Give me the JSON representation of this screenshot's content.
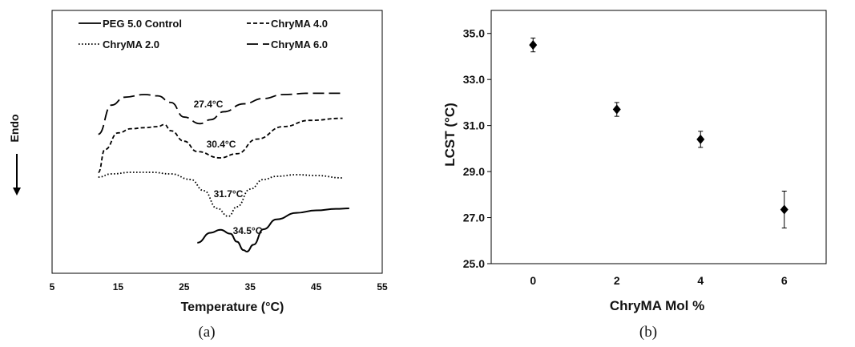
{
  "chart_data": [
    {
      "type": "line",
      "panel_label": "(a)",
      "xlabel": "Temperature (°C)",
      "ylabel": "Endo",
      "xlim": [
        5,
        55
      ],
      "x_ticks": [
        "5",
        "15",
        "25",
        "35",
        "45",
        "55"
      ],
      "y_ticks_shown": false,
      "legend": "top, two columns",
      "series": [
        {
          "name": "PEG 5.0 Control",
          "style": "solid",
          "x": [
            27,
            29,
            30.5,
            32,
            33,
            34,
            34.5,
            35.5,
            37,
            39,
            42,
            45,
            48,
            50
          ],
          "y": [
            0.82,
            0.62,
            0.56,
            0.64,
            0.8,
            0.97,
            1.0,
            0.86,
            0.55,
            0.35,
            0.22,
            0.17,
            0.14,
            0.13
          ]
        },
        {
          "name": "ChryMA 2.0",
          "style": "dotted",
          "x": [
            12,
            14,
            17,
            20,
            23,
            26,
            28,
            30,
            31.7,
            33,
            35,
            37,
            39,
            42,
            45,
            49
          ],
          "y": [
            0.31,
            0.27,
            0.25,
            0.25,
            0.27,
            0.34,
            0.48,
            0.7,
            0.8,
            0.68,
            0.46,
            0.34,
            0.3,
            0.28,
            0.29,
            0.32
          ]
        },
        {
          "name": "ChryMA 4.0",
          "style": "dashed",
          "x": [
            12,
            13,
            15,
            17,
            19,
            21,
            22,
            23,
            25,
            27,
            30.4,
            33,
            36,
            40,
            44,
            49
          ],
          "y": [
            0.27,
            0.16,
            0.08,
            0.06,
            0.055,
            0.05,
            0.04,
            0.07,
            0.12,
            0.17,
            0.2,
            0.18,
            0.11,
            0.05,
            0.02,
            0.01
          ]
        },
        {
          "name": "ChryMA 6.0",
          "style": "long-dash",
          "x": [
            12,
            14,
            16,
            19,
            21,
            23,
            25,
            27.4,
            29,
            31,
            34,
            37,
            40,
            44,
            49
          ],
          "y": [
            0.3,
            0.08,
            0.02,
            0.0,
            0.01,
            0.06,
            0.17,
            0.22,
            0.19,
            0.13,
            0.07,
            0.03,
            0.0,
            -0.01,
            -0.01
          ]
        }
      ],
      "annotations": [
        {
          "text": "27.4°C",
          "series": "ChryMA 6.0"
        },
        {
          "text": "30.4°C",
          "series": "ChryMA 4.0"
        },
        {
          "text": "31.7°C",
          "series": "ChryMA 2.0"
        },
        {
          "text": "34.5°C",
          "series": "PEG 5.0 Control"
        }
      ]
    },
    {
      "type": "scatter",
      "panel_label": "(b)",
      "xlabel": "ChryMA Mol %",
      "ylabel": "LCST (°C)",
      "categories": [
        "0",
        "2",
        "4",
        "6"
      ],
      "x_ticks": [
        "0",
        "2",
        "4",
        "6"
      ],
      "y_ticks": [
        "25.0",
        "27.0",
        "29.0",
        "31.0",
        "33.0",
        "35.0"
      ],
      "ylim": [
        25.0,
        36.0
      ],
      "marker": "diamond",
      "series": [
        {
          "x": [
            0,
            2,
            4,
            6
          ],
          "y": [
            34.5,
            31.7,
            30.4,
            27.35
          ],
          "error": [
            0.3,
            0.3,
            0.35,
            0.8
          ]
        }
      ]
    }
  ]
}
